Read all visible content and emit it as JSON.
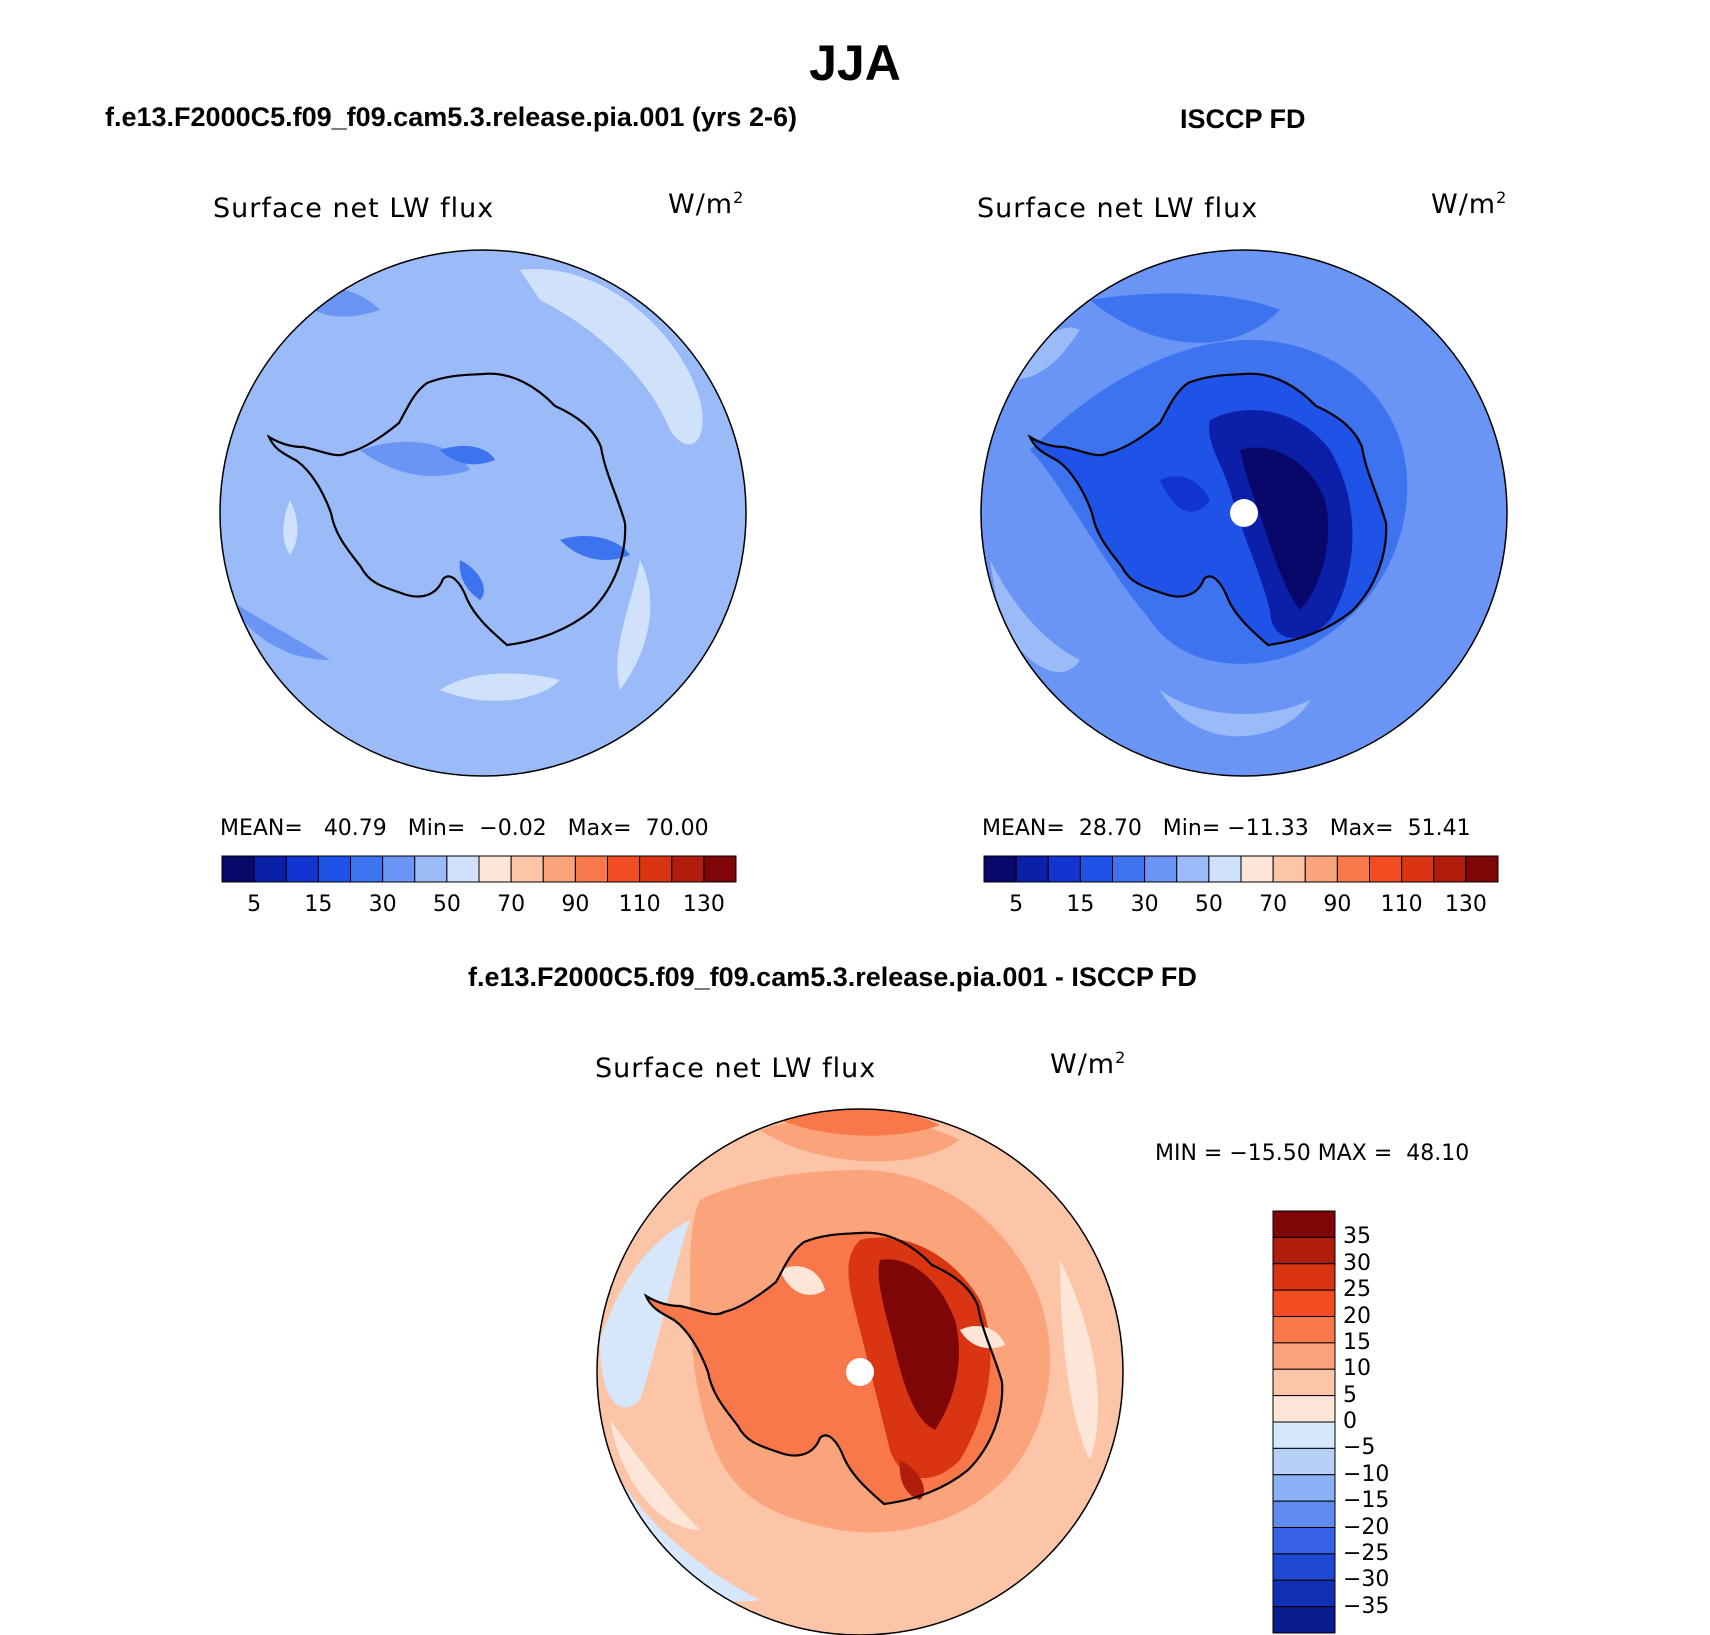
{
  "main_title": "JJA",
  "panels": {
    "model": {
      "case_title": "f.e13.F2000C5.f09_f09.cam5.3.release.pia.001 (yrs 2-6)",
      "variable": "Surface net LW flux",
      "units": "W/m",
      "units_sup": "2",
      "stats": {
        "mean_label": "MEAN=",
        "mean": "40.79",
        "min_label": "Min=",
        "min": "−0.02",
        "max_label": "Max=",
        "max": "70.00"
      }
    },
    "obs": {
      "case_title": "ISCCP FD",
      "variable": "Surface net LW flux",
      "units": "W/m",
      "units_sup": "2",
      "stats": {
        "mean_label": "MEAN=",
        "mean": "28.70",
        "min_label": "Min=",
        "min": "−11.33",
        "max_label": "Max=",
        "max": "51.41"
      }
    },
    "diff": {
      "case_title": "f.e13.F2000C5.f09_f09.cam5.3.release.pia.001 - ISCCP FD",
      "variable": "Surface net LW flux",
      "units": "W/m",
      "units_sup": "2",
      "stats_text": "MIN = −15.50 MAX =  48.10"
    }
  },
  "chart_data": [
    {
      "type": "heatmap",
      "projection": "south polar stereographic",
      "title": "Surface net LW flux",
      "units": "W/m2",
      "mean": 40.79,
      "min": -0.02,
      "max": 70.0,
      "colorbar": {
        "colors": [
          "#08086b",
          "#0b1fa8",
          "#1234d0",
          "#1f52e6",
          "#3d73ef",
          "#6a95f5",
          "#9bbaf8",
          "#cfe1fb",
          "#fde6d8",
          "#fcc5a8",
          "#fba47c",
          "#f9784b",
          "#f24d22",
          "#d93512",
          "#b11d0c",
          "#7e0606"
        ],
        "tick_labels": [
          "5",
          "15",
          "30",
          "50",
          "70",
          "90",
          "110",
          "130"
        ]
      }
    },
    {
      "type": "heatmap",
      "projection": "south polar stereographic",
      "title": "Surface net LW flux",
      "units": "W/m2",
      "mean": 28.7,
      "min": -11.33,
      "max": 51.41,
      "colorbar": {
        "colors": [
          "#08086b",
          "#0b1fa8",
          "#1234d0",
          "#1f52e6",
          "#3d73ef",
          "#6a95f5",
          "#9bbaf8",
          "#cfe1fb",
          "#fde6d8",
          "#fcc5a8",
          "#fba47c",
          "#f9784b",
          "#f24d22",
          "#d93512",
          "#b11d0c",
          "#7e0606"
        ],
        "tick_labels": [
          "5",
          "15",
          "30",
          "50",
          "70",
          "90",
          "110",
          "130"
        ]
      }
    },
    {
      "type": "heatmap",
      "projection": "south polar stereographic",
      "title": "Surface net LW flux",
      "units": "W/m2",
      "min": -15.5,
      "max": 48.1,
      "colorbar": {
        "colors": [
          "#7e0606",
          "#b11d0c",
          "#d93512",
          "#f24d22",
          "#f9784b",
          "#fba47c",
          "#fcc5a8",
          "#fde6d8",
          "#d6e6fb",
          "#b6d0f8",
          "#8db1f5",
          "#5f8bf0",
          "#3762e6",
          "#1f48d4",
          "#1230b4",
          "#0a1a8f"
        ],
        "tick_labels": [
          "35",
          "30",
          "25",
          "20",
          "15",
          "10",
          "5",
          "0",
          "−5",
          "−10",
          "−15",
          "−20",
          "−25",
          "−30",
          "−35"
        ]
      }
    }
  ]
}
